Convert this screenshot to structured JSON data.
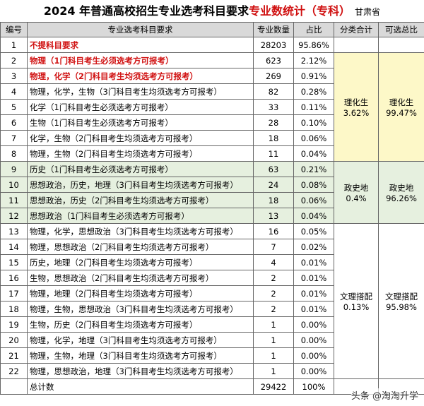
{
  "header": {
    "title": "2024 年普通高校招生专业选考科目要求",
    "title_highlight": "专业数统计（专科）",
    "province": "甘肃省"
  },
  "table": {
    "columns": [
      "编号",
      "专业选考科目要求",
      "专业数量",
      "占比",
      "分类合计",
      "可选总比"
    ],
    "rows": [
      [
        "1",
        "不提科目要求",
        28203,
        "95.86%"
      ],
      [
        "2",
        "物理（1门科目考生必须选考方可报考）",
        623,
        "2.12%"
      ],
      [
        "3",
        "物理，化学（2门科目考生均须选考方可报考）",
        269,
        "0.91%"
      ],
      [
        "4",
        "物理，化学，生物（3门科目考生均须选考方可报考）",
        82,
        "0.28%"
      ],
      [
        "5",
        "化学（1门科目考生必须选考方可报考）",
        33,
        "0.11%"
      ],
      [
        "6",
        "生物（1门科目考生必须选考方可报考）",
        28,
        "0.10%"
      ],
      [
        "7",
        "化学，生物（2门科目考生均须选考方可报考）",
        18,
        "0.06%"
      ],
      [
        "8",
        "物理，生物（2门科目考生均须选考方可报考）",
        11,
        "0.04%"
      ],
      [
        "9",
        "历史（1门科目考生必须选考方可报考）",
        63,
        "0.21%"
      ],
      [
        "10",
        "思想政治，历史，地理（3门科目考生均须选考方可报考）",
        24,
        "0.08%"
      ],
      [
        "11",
        "思想政治，历史（2门科目考生均须选考方可报考）",
        18,
        "0.06%"
      ],
      [
        "12",
        "思想政治（1门科目考生必须选考方可报考）",
        13,
        "0.04%"
      ],
      [
        "13",
        "物理，化学，思想政治（3门科目考生均须选考方可报考）",
        16,
        "0.05%"
      ],
      [
        "14",
        "物理，思想政治（2门科目考生均须选考方可报考）",
        7,
        "0.02%"
      ],
      [
        "15",
        "历史，地理（2门科目考生均须选考方可报考）",
        4,
        "0.01%"
      ],
      [
        "16",
        "生物，思想政治（2门科目考生均须选考方可报考）",
        2,
        "0.01%"
      ],
      [
        "17",
        "物理，地理（2门科目考生均须选考方可报考）",
        2,
        "0.01%"
      ],
      [
        "18",
        "物理，生物，思想政治（3门科目考生均须选考方可报考）",
        2,
        "0.01%"
      ],
      [
        "19",
        "生物，历史（2门科目考生均须选考方可报考）",
        1,
        "0.00%"
      ],
      [
        "20",
        "物理，化学，地理（3门科目考生均须选考方可报考）",
        1,
        "0.00%"
      ],
      [
        "21",
        "物理，生物，地理（3门科目考生均须选考方可报考）",
        1,
        "0.00%"
      ],
      [
        "22",
        "物理，思想政治，地理（3门科目考生均须选考方可报考）",
        1,
        "0.00%"
      ]
    ],
    "groups": [
      {
        "name": "理化生",
        "subtotal": "3.62%",
        "overall_name": "理化生",
        "overall": "99.47%"
      },
      {
        "name": "政史地",
        "subtotal": "0.4%",
        "overall_name": "政史地",
        "overall": "96.26%"
      },
      {
        "name": "文理搭配",
        "subtotal": "0.13%",
        "overall_name": "文理搭配",
        "overall": "95.98%"
      }
    ],
    "total": [
      "总计数",
      29422,
      "100%"
    ]
  },
  "watermark": "头条 @淘淘升学"
}
